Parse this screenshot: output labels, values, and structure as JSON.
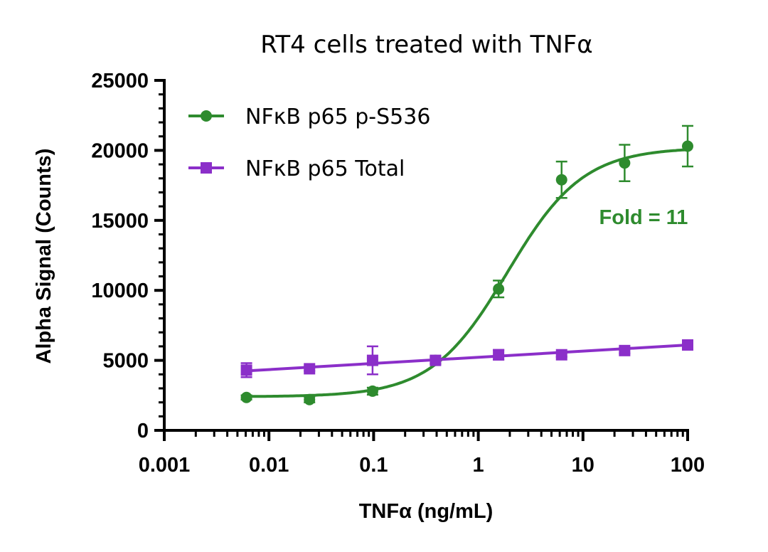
{
  "chart_data": {
    "type": "scatter",
    "title": "RT4 cells treated with TNFα",
    "xlabel": "TNFα (ng/mL)",
    "ylabel": "Alpha Signal (Counts)",
    "xscale": "log",
    "xlim": [
      0.001,
      100
    ],
    "ylim": [
      0,
      25000
    ],
    "x_ticks": [
      0.001,
      0.01,
      0.1,
      1,
      10,
      100
    ],
    "x_tick_labels": [
      "0.001",
      "0.01",
      "0.1",
      "1",
      "10",
      "100"
    ],
    "y_ticks": [
      0,
      5000,
      10000,
      15000,
      20000,
      25000
    ],
    "y_tick_labels": [
      "0",
      "5000",
      "10000",
      "15000",
      "20000",
      "25000"
    ],
    "legend_position": "top-left",
    "series": [
      {
        "name": "NFκB p65 p-S536",
        "color": "#2e8b2e",
        "marker": "circle",
        "x": [
          0.0061,
          0.0244,
          0.0977,
          0.39,
          1.5625,
          6.25,
          25,
          100
        ],
        "y": [
          2350,
          2200,
          2800,
          5000,
          10100,
          17900,
          19100,
          20300
        ],
        "error": [
          150,
          200,
          250,
          250,
          600,
          1300,
          1300,
          1450
        ],
        "fit": {
          "type": "sigmoid",
          "bottom": 2400,
          "top": 20200,
          "ec50": 1.9,
          "hill": 1.2
        }
      },
      {
        "name": "NFκB p65 Total",
        "color": "#8b2fc9",
        "marker": "square",
        "x": [
          0.0061,
          0.0244,
          0.0977,
          0.39,
          1.5625,
          6.25,
          25,
          100
        ],
        "y": [
          4300,
          4400,
          5000,
          5000,
          5400,
          5400,
          5700,
          6100
        ],
        "error": [
          500,
          150,
          1000,
          200,
          350,
          150,
          200,
          150
        ],
        "fit": {
          "type": "loglinear",
          "y_at_0.0061": 4250,
          "y_at_100": 6100
        }
      }
    ],
    "annotations": [
      {
        "text": "Fold = 11",
        "color": "#2e8b2e"
      }
    ]
  }
}
